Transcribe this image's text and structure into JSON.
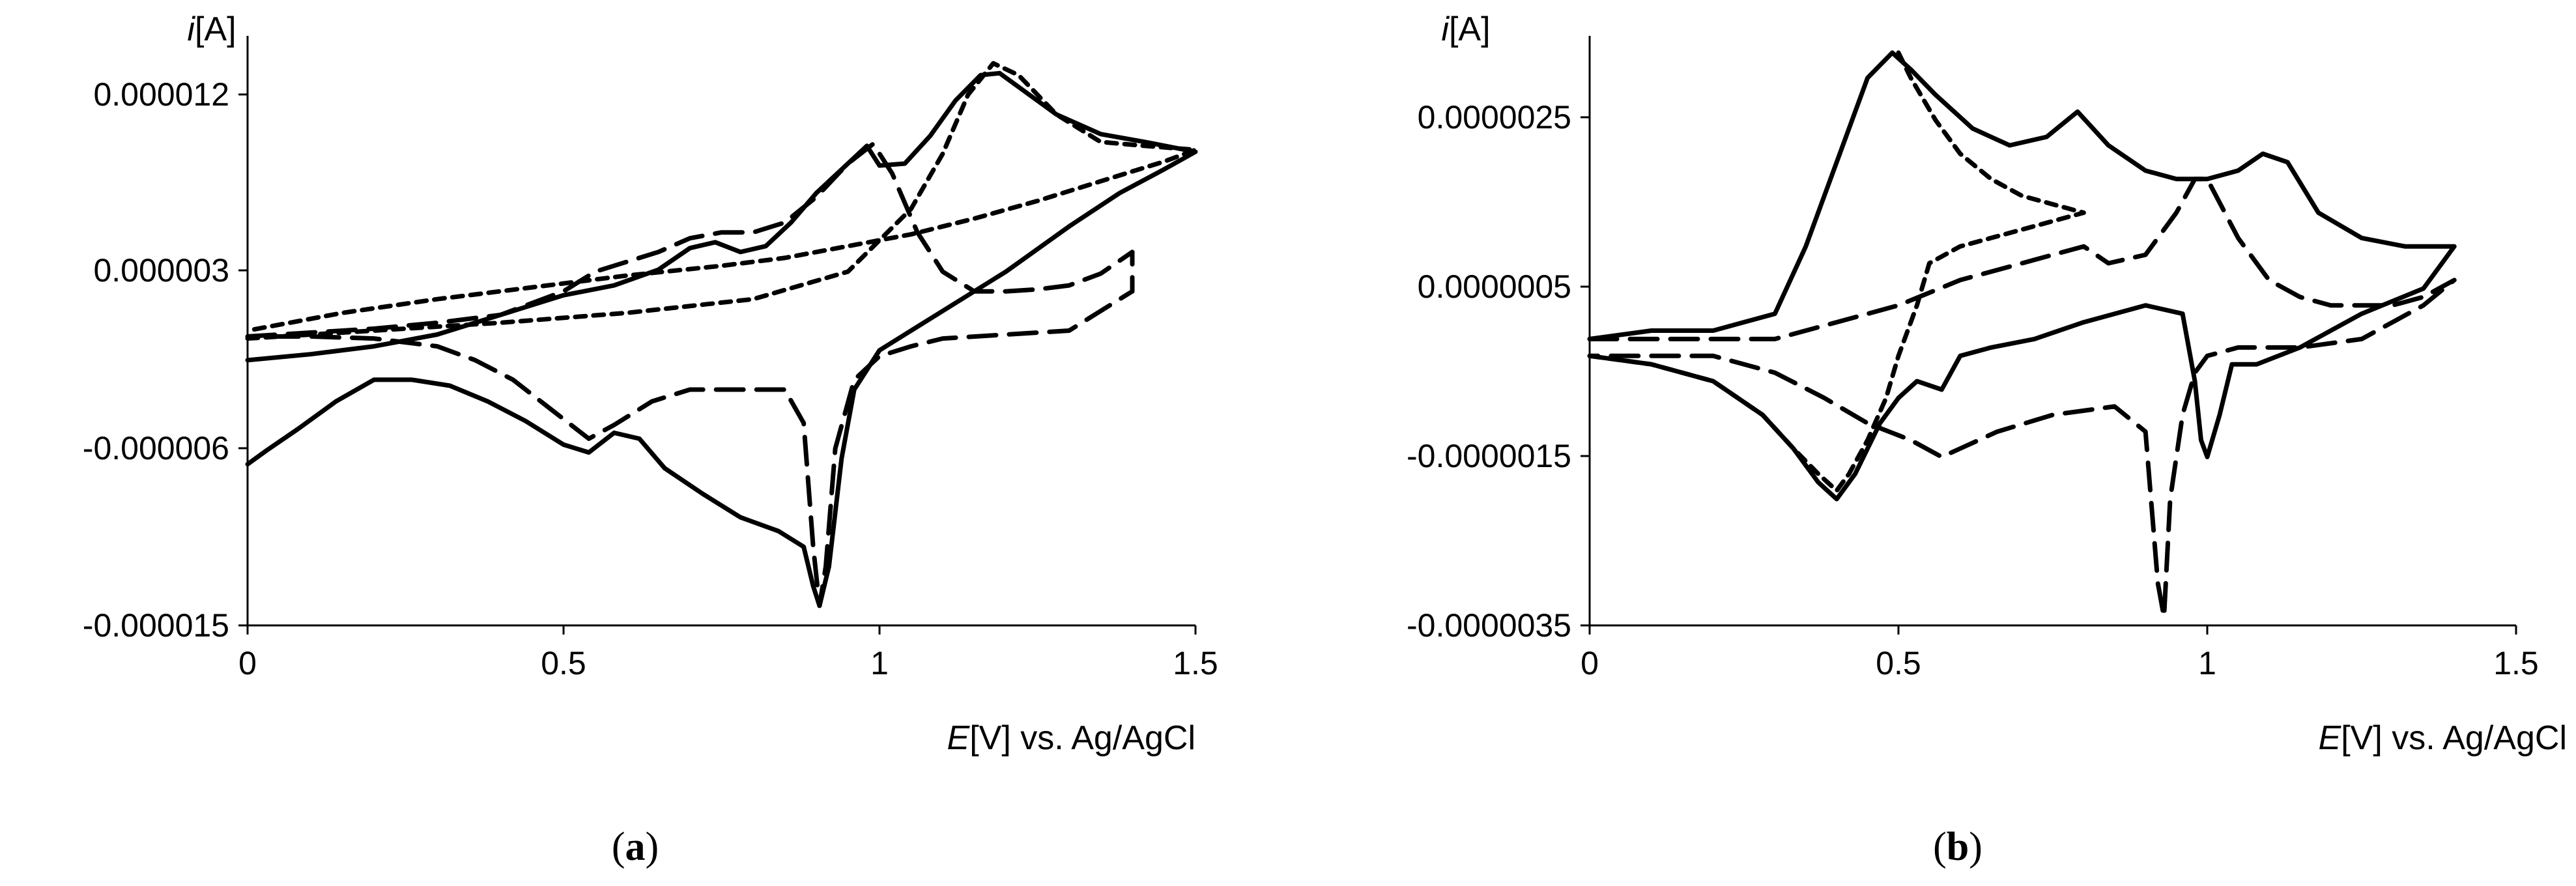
{
  "chart_data": [
    {
      "panel": "(a)",
      "panel_letter": "a",
      "type": "line",
      "xlabel_italic": "E",
      "xlabel_rest": "[V] vs. Ag/AgCl",
      "ylabel_italic": "i",
      "ylabel_rest": "[A]",
      "xlim": [
        0,
        1.5
      ],
      "ylim": [
        -1.5e-05,
        1.5e-05
      ],
      "x_ticks": [
        0,
        0.5,
        1,
        1.5
      ],
      "x_tick_labels": [
        "0",
        "0.5",
        "1",
        "1.5"
      ],
      "y_ticks": [
        1.2e-05,
        3e-06,
        -6e-06,
        -1.5e-05
      ],
      "y_tick_labels": [
        "0.000012",
        "0.000003",
        "-0.000006",
        "-0.000015"
      ],
      "grid": false,
      "series": [
        {
          "style": "solid",
          "x": [
            0.0,
            0.1,
            0.2,
            0.3,
            0.4,
            0.5,
            0.58,
            0.65,
            0.7,
            0.74,
            0.78,
            0.82,
            0.86,
            0.9,
            0.95,
            0.98,
            1.0,
            1.04,
            1.08,
            1.12,
            1.16,
            1.19,
            1.22,
            1.28,
            1.35,
            1.42,
            1.5,
            1.45,
            1.38,
            1.3,
            1.2,
            1.1,
            1.05,
            1.0,
            0.96,
            0.94,
            0.92,
            0.905,
            0.895,
            0.88,
            0.84,
            0.78,
            0.72,
            0.66,
            0.62,
            0.58,
            0.54,
            0.5,
            0.44,
            0.38,
            0.32,
            0.26,
            0.2,
            0.14,
            0.08,
            0.03,
            0.0
          ],
          "y": [
            -1.5e-06,
            -1.2e-06,
            -8e-07,
            -2e-07,
            8e-07,
            1.8e-06,
            2.3e-06,
            3.1e-06,
            4.2e-06,
            4.5e-06,
            4e-06,
            4.3e-06,
            5.5e-06,
            7e-06,
            8.5e-06,
            9.4e-06,
            8.4e-06,
            8.5e-06,
            9.9e-06,
            1.17e-05,
            1.3e-05,
            1.31e-05,
            1.24e-05,
            1.1e-05,
            1e-05,
            9.6e-06,
            9.1e-06,
            8.2e-06,
            7e-06,
            5.3e-06,
            3e-06,
            1e-06,
            0.0,
            -1e-06,
            -3e-06,
            -6.5e-06,
            -1.2e-05,
            -1.4e-05,
            -1.3e-05,
            -1.1e-05,
            -1.02e-05,
            -9.5e-06,
            -8.3e-06,
            -7e-06,
            -5.5e-06,
            -5.2e-06,
            -6.2e-06,
            -5.8e-06,
            -4.6e-06,
            -3.6e-06,
            -2.8e-06,
            -2.5e-06,
            -2.5e-06,
            -3.6e-06,
            -5e-06,
            -6.1e-06,
            -6.8e-06
          ]
        },
        {
          "style": "long-dash",
          "x": [
            0.0,
            0.1,
            0.2,
            0.3,
            0.4,
            0.5,
            0.55,
            0.6,
            0.65,
            0.7,
            0.75,
            0.8,
            0.85,
            0.9,
            0.95,
            0.99,
            1.02,
            1.06,
            1.1,
            1.15,
            1.2,
            1.25,
            1.3,
            1.35,
            1.4,
            1.4,
            1.3,
            1.2,
            1.1,
            1.05,
            1.0,
            0.96,
            0.93,
            0.915,
            0.905,
            0.895,
            0.88,
            0.85,
            0.8,
            0.75,
            0.7,
            0.64,
            0.58,
            0.54,
            0.48,
            0.42,
            0.36,
            0.3,
            0.2,
            0.1,
            0.0
          ],
          "y": [
            -3e-07,
            -1e-07,
            1e-07,
            4e-07,
            8e-07,
            2e-06,
            3e-06,
            3.5e-06,
            4e-06,
            4.7e-06,
            5e-06,
            5e-06,
            5.5e-06,
            6.8e-06,
            8.5e-06,
            9.5e-06,
            8e-06,
            5e-06,
            3e-06,
            2e-06,
            2e-06,
            2.1e-06,
            2.3e-06,
            2.9e-06,
            4e-06,
            2e-06,
            0.0,
            -2e-07,
            -4e-07,
            -8e-07,
            -1.3e-06,
            -2.5e-06,
            -6e-06,
            -1.2e-05,
            -1.4e-05,
            -1.1e-05,
            -4.7e-06,
            -3e-06,
            -3e-06,
            -3e-06,
            -3e-06,
            -3.6e-06,
            -4.8e-06,
            -5.5e-06,
            -4e-06,
            -2.5e-06,
            -1.5e-06,
            -8e-07,
            -4e-07,
            -3e-07,
            -3e-07
          ]
        },
        {
          "style": "short-dash",
          "x": [
            0.0,
            0.2,
            0.4,
            0.6,
            0.8,
            0.95,
            1.05,
            1.1,
            1.14,
            1.18,
            1.22,
            1.28,
            1.35,
            1.42,
            1.5,
            1.45,
            1.35,
            1.25,
            1.15,
            1.05,
            0.95,
            0.85,
            0.75,
            0.6,
            0.45,
            0.3,
            0.15,
            0.0
          ],
          "y": [
            -4e-07,
            0.0,
            4e-07,
            9e-07,
            1.6e-06,
            3e-06,
            6.2e-06,
            9e-06,
            1.2e-05,
            1.36e-05,
            1.3e-05,
            1.1e-05,
            9.6e-06,
            9.4e-06,
            9.2e-06,
            8.6e-06,
            7.6e-06,
            6.6e-06,
            5.7e-06,
            4.9e-06,
            4.3e-06,
            3.7e-06,
            3.3e-06,
            2.8e-06,
            2.2e-06,
            1.6e-06,
            9e-07,
            0.0
          ]
        }
      ]
    },
    {
      "panel": "(b)",
      "panel_letter": "b",
      "type": "line",
      "xlabel_italic": "E",
      "xlabel_rest": "[V] vs. Ag/AgCl",
      "ylabel_italic": "i",
      "ylabel_rest": "[A]",
      "xlim": [
        0,
        1.5
      ],
      "ylim": [
        -3.5e-06,
        3.5e-06
      ],
      "x_ticks": [
        0,
        0.5,
        1,
        1.5
      ],
      "x_tick_labels": [
        "0",
        "0.5",
        "1",
        "1.5"
      ],
      "y_ticks": [
        2.5e-06,
        5e-07,
        -1.5e-06,
        -3.5e-06
      ],
      "y_tick_labels": [
        "0.0000025",
        "0.0000005",
        "-0.0000015",
        "-0.0000035"
      ],
      "grid": false,
      "series": [
        {
          "style": "solid",
          "x": [
            0.0,
            0.1,
            0.2,
            0.3,
            0.35,
            0.4,
            0.45,
            0.49,
            0.52,
            0.56,
            0.62,
            0.68,
            0.74,
            0.79,
            0.84,
            0.9,
            0.95,
            1.0,
            1.05,
            1.09,
            1.13,
            1.18,
            1.25,
            1.32,
            1.4,
            1.35,
            1.25,
            1.15,
            1.08,
            1.04,
            1.02,
            1.0,
            0.99,
            0.98,
            0.96,
            0.9,
            0.8,
            0.72,
            0.65,
            0.6,
            0.57,
            0.53,
            0.5,
            0.47,
            0.43,
            0.4,
            0.37,
            0.33,
            0.28,
            0.2,
            0.1,
            0.0
          ],
          "y": [
            -1e-07,
            0.0,
            0.0,
            2e-07,
            1e-06,
            2e-06,
            3e-06,
            3.3e-06,
            3.1e-06,
            2.8e-06,
            2.4e-06,
            2.2e-06,
            2.3e-06,
            2.6e-06,
            2.2e-06,
            1.9e-06,
            1.8e-06,
            1.8e-06,
            1.9e-06,
            2.1e-06,
            2e-06,
            1.4e-06,
            1.1e-06,
            1e-06,
            1e-06,
            5e-07,
            2e-07,
            -2e-07,
            -4e-07,
            -4e-07,
            -1e-06,
            -1.5e-06,
            -1.3e-06,
            -6e-07,
            2e-07,
            3e-07,
            1e-07,
            -1e-07,
            -2e-07,
            -3e-07,
            -7e-07,
            -6e-07,
            -8e-07,
            -1.1e-06,
            -1.7e-06,
            -2e-06,
            -1.8e-06,
            -1.4e-06,
            -1e-06,
            -6e-07,
            -4e-07,
            -3e-07
          ]
        },
        {
          "style": "long-dash",
          "x": [
            0.0,
            0.1,
            0.2,
            0.3,
            0.4,
            0.5,
            0.6,
            0.7,
            0.8,
            0.84,
            0.9,
            0.95,
            0.98,
            1.0,
            1.05,
            1.1,
            1.15,
            1.2,
            1.25,
            1.3,
            1.35,
            1.4,
            1.35,
            1.25,
            1.15,
            1.05,
            1.0,
            0.98,
            0.96,
            0.94,
            0.93,
            0.92,
            0.9,
            0.85,
            0.75,
            0.66,
            0.6,
            0.57,
            0.52,
            0.45,
            0.38,
            0.3,
            0.2,
            0.1,
            0.0
          ],
          "y": [
            -1e-07,
            -1e-07,
            -1e-07,
            -1e-07,
            1e-07,
            3e-07,
            6e-07,
            8e-07,
            1e-06,
            8e-07,
            9e-07,
            1.4e-06,
            1.8e-06,
            1.8e-06,
            1.1e-06,
            6e-07,
            4e-07,
            3e-07,
            3e-07,
            3e-07,
            4e-07,
            6e-07,
            3e-07,
            -1e-07,
            -2e-07,
            -2e-07,
            -3e-07,
            -5e-07,
            -1e-06,
            -2e-06,
            -3.4e-06,
            -3e-06,
            -1.2e-06,
            -9e-07,
            -1e-06,
            -1.2e-06,
            -1.4e-06,
            -1.5e-06,
            -1.3e-06,
            -1.1e-06,
            -8e-07,
            -5e-07,
            -3e-07,
            -3e-07,
            -3e-07
          ]
        },
        {
          "style": "short-dash",
          "x": [
            0.5,
            0.52,
            0.56,
            0.6,
            0.65,
            0.7,
            0.75,
            0.8,
            0.75,
            0.7,
            0.65,
            0.6,
            0.55,
            0.53,
            0.5,
            0.48,
            0.45,
            0.42,
            0.4,
            0.37,
            0.33,
            0.28,
            0.2,
            0.1,
            0.0
          ],
          "y": [
            3.3e-06,
            3e-06,
            2.5e-06,
            2.1e-06,
            1.8e-06,
            1.6e-06,
            1.5e-06,
            1.4e-06,
            1.3e-06,
            1.2e-06,
            1.1e-06,
            1e-06,
            8e-07,
            3e-07,
            -3e-07,
            -8e-07,
            -1.3e-06,
            -1.7e-06,
            -1.9e-06,
            -1.7e-06,
            -1.4e-06,
            -1e-06,
            -6e-07,
            -4e-07,
            -3e-07
          ]
        }
      ]
    }
  ]
}
